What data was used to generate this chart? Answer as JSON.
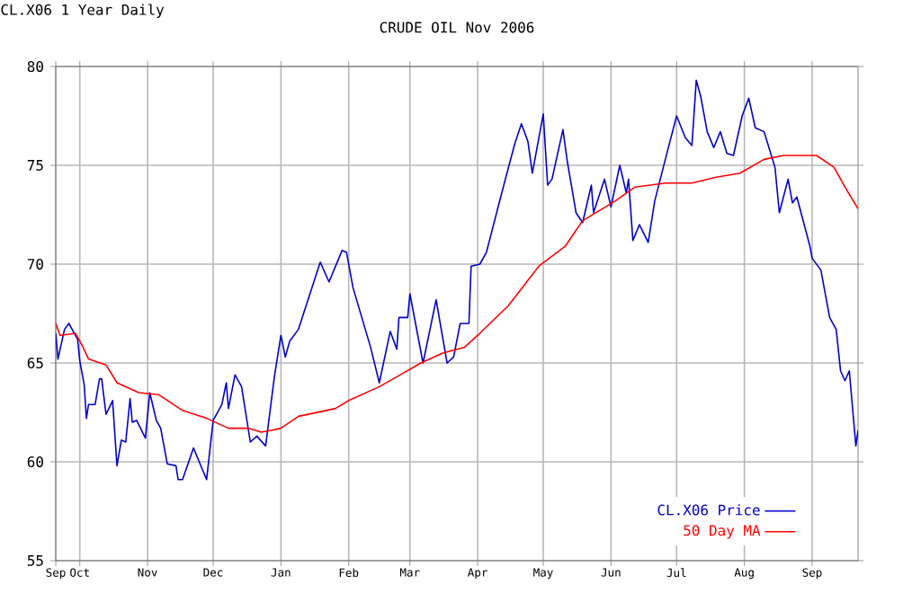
{
  "chart_data": {
    "type": "line",
    "title": "CRUDE OIL Nov 2006",
    "subtitle": "CL.X06 1 Year Daily",
    "xlim": [
      "2005-09-20",
      "2006-09-22"
    ],
    "xticks": [
      {
        "value": "2005-09-20",
        "label": "Sep"
      },
      {
        "value": "2005-10-01",
        "label": "Oct"
      },
      {
        "value": "2005-11-01",
        "label": "Nov"
      },
      {
        "value": "2005-12-01",
        "label": "Dec"
      },
      {
        "value": "2006-01-01",
        "label": "Jan"
      },
      {
        "value": "2006-02-01",
        "label": "Feb"
      },
      {
        "value": "2006-03-01",
        "label": "Mar"
      },
      {
        "value": "2006-04-01",
        "label": "Apr"
      },
      {
        "value": "2006-05-01",
        "label": "May"
      },
      {
        "value": "2006-06-01",
        "label": "Jun"
      },
      {
        "value": "2006-07-01",
        "label": "Jul"
      },
      {
        "value": "2006-08-01",
        "label": "Aug"
      },
      {
        "value": "2006-09-01",
        "label": "Sep"
      }
    ],
    "ylim": [
      55,
      80
    ],
    "yticks": [
      55,
      60,
      65,
      70,
      75,
      80
    ],
    "grid": true,
    "legend": "bottom right",
    "marker": "none",
    "line_style": "solid",
    "series": [
      {
        "name": "CL.X06 Price",
        "color": "#0000cc",
        "x": [
          "2005-09-20",
          "2005-09-21",
          "2005-09-24",
          "2005-09-26",
          "2005-09-28",
          "2005-09-30",
          "2005-10-01",
          "2005-10-03",
          "2005-10-04",
          "2005-10-05",
          "2005-10-08",
          "2005-10-10",
          "2005-10-11",
          "2005-10-13",
          "2005-10-16",
          "2005-10-18",
          "2005-10-20",
          "2005-10-22",
          "2005-10-24",
          "2005-10-25",
          "2005-10-27",
          "2005-10-31",
          "2005-11-02",
          "2005-11-05",
          "2005-11-07",
          "2005-11-10",
          "2005-11-14",
          "2005-11-15",
          "2005-11-17",
          "2005-11-22",
          "2005-11-28",
          "2005-12-01",
          "2005-12-05",
          "2005-12-07",
          "2005-12-08",
          "2005-12-11",
          "2005-12-14",
          "2005-12-18",
          "2005-12-21",
          "2005-12-25",
          "2005-12-29",
          "2006-01-01",
          "2006-01-03",
          "2006-01-05",
          "2006-01-09",
          "2006-01-19",
          "2006-01-23",
          "2006-01-29",
          "2006-01-31",
          "2006-02-03",
          "2006-02-07",
          "2006-02-11",
          "2006-02-15",
          "2006-02-20",
          "2006-02-23",
          "2006-02-24",
          "2006-02-28",
          "2006-03-01",
          "2006-03-07",
          "2006-03-13",
          "2006-03-18",
          "2006-03-21",
          "2006-03-24",
          "2006-03-28",
          "2006-03-29",
          "2006-04-02",
          "2006-04-05",
          "2006-04-12",
          "2006-04-18",
          "2006-04-21",
          "2006-04-24",
          "2006-04-26",
          "2006-05-01",
          "2006-05-03",
          "2006-05-05",
          "2006-05-10",
          "2006-05-12",
          "2006-05-16",
          "2006-05-19",
          "2006-05-23",
          "2006-05-24",
          "2006-05-29",
          "2006-06-01",
          "2006-06-05",
          "2006-06-08",
          "2006-06-09",
          "2006-06-11",
          "2006-06-14",
          "2006-06-18",
          "2006-06-21",
          "2006-06-27",
          "2006-07-01",
          "2006-07-05",
          "2006-07-08",
          "2006-07-10",
          "2006-07-12",
          "2006-07-15",
          "2006-07-18",
          "2006-07-21",
          "2006-07-24",
          "2006-07-27",
          "2006-07-31",
          "2006-08-03",
          "2006-08-06",
          "2006-08-10",
          "2006-08-15",
          "2006-08-17",
          "2006-08-21",
          "2006-08-23",
          "2006-08-25",
          "2006-08-31",
          "2006-09-01",
          "2006-09-05",
          "2006-09-09",
          "2006-09-12",
          "2006-09-14",
          "2006-09-16",
          "2006-09-18",
          "2006-09-21",
          "2006-09-22"
        ],
        "values": [
          66.5,
          65.2,
          66.7,
          67.0,
          66.6,
          66.2,
          65.1,
          63.9,
          62.2,
          62.9,
          62.9,
          64.2,
          64.2,
          62.4,
          63.1,
          59.8,
          61.1,
          61.0,
          63.2,
          62.0,
          62.1,
          61.2,
          63.5,
          62.1,
          61.7,
          59.9,
          59.8,
          59.1,
          59.1,
          60.7,
          59.1,
          62.1,
          62.9,
          64.0,
          62.7,
          64.4,
          63.8,
          61.0,
          61.3,
          60.8,
          64.3,
          66.4,
          65.3,
          66.1,
          66.7,
          70.1,
          69.1,
          70.7,
          70.6,
          68.8,
          67.3,
          65.8,
          64.0,
          66.6,
          65.7,
          67.3,
          67.3,
          68.5,
          65.0,
          68.2,
          65.0,
          65.3,
          67.0,
          67.0,
          69.9,
          70.0,
          70.6,
          73.6,
          76.1,
          77.1,
          76.2,
          74.6,
          77.6,
          74.0,
          74.3,
          76.8,
          75.2,
          72.6,
          72.1,
          74.0,
          72.6,
          74.3,
          72.9,
          75.0,
          73.6,
          74.3,
          71.2,
          72.0,
          71.1,
          73.2,
          75.8,
          77.5,
          76.4,
          76.0,
          79.3,
          78.5,
          76.7,
          75.9,
          76.7,
          75.6,
          75.5,
          77.5,
          78.4,
          76.9,
          76.7,
          74.9,
          72.6,
          74.3,
          73.1,
          73.4,
          70.9,
          70.3,
          69.7,
          67.3,
          66.7,
          64.6,
          64.1,
          64.6,
          60.8,
          61.6
        ]
      },
      {
        "name": "50 Day MA",
        "color": "#ff0000",
        "x": [
          "2005-09-20",
          "2005-09-22",
          "2005-09-29",
          "2005-10-02",
          "2005-10-05",
          "2005-10-13",
          "2005-10-18",
          "2005-10-28",
          "2005-11-06",
          "2005-11-17",
          "2005-11-28",
          "2005-12-08",
          "2005-12-17",
          "2005-12-23",
          "2005-12-28",
          "2006-01-01",
          "2006-01-09",
          "2006-01-26",
          "2006-02-01",
          "2006-02-15",
          "2006-02-23",
          "2006-03-06",
          "2006-03-16",
          "2006-03-26",
          "2006-04-01",
          "2006-04-15",
          "2006-04-29",
          "2006-05-11",
          "2006-05-19",
          "2006-06-03",
          "2006-06-12",
          "2006-06-26",
          "2006-07-08",
          "2006-07-19",
          "2006-07-30",
          "2006-08-10",
          "2006-08-19",
          "2006-09-03",
          "2006-09-11",
          "2006-09-16",
          "2006-09-22"
        ],
        "values": [
          67.0,
          66.4,
          66.5,
          65.9,
          65.2,
          64.9,
          64.0,
          63.5,
          63.4,
          62.6,
          62.2,
          61.7,
          61.7,
          61.5,
          61.6,
          61.7,
          62.3,
          62.7,
          63.1,
          63.8,
          64.3,
          65.0,
          65.5,
          65.8,
          66.4,
          67.9,
          69.9,
          70.9,
          72.2,
          73.2,
          73.9,
          74.1,
          74.1,
          74.4,
          74.6,
          75.3,
          75.5,
          75.5,
          74.9,
          73.9,
          72.8
        ]
      }
    ]
  }
}
